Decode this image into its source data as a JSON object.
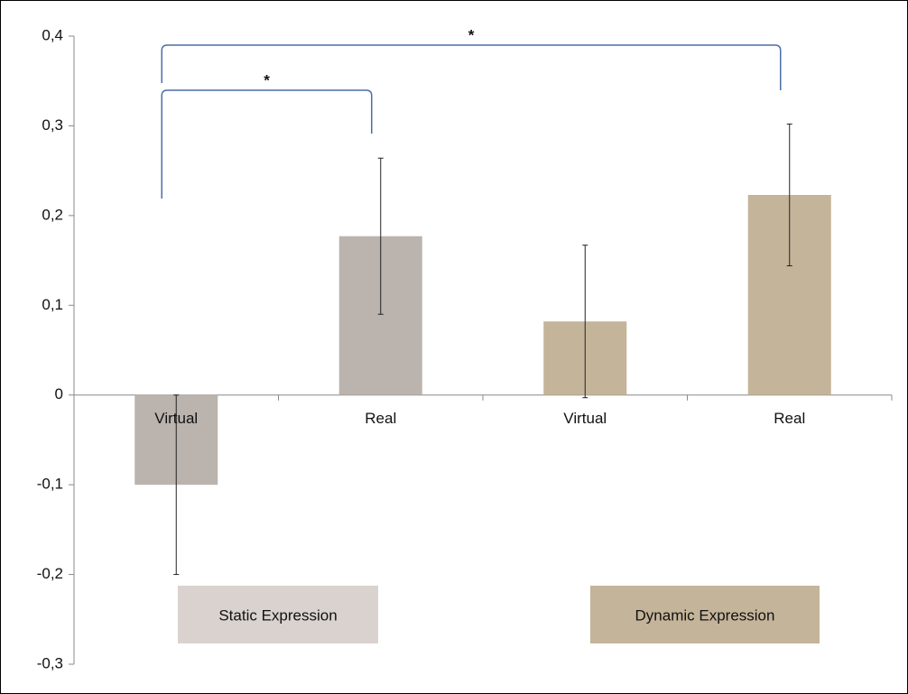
{
  "chart_data": {
    "type": "bar",
    "categories": [
      "Virtual",
      "Real",
      "Virtual",
      "Real"
    ],
    "values": [
      -0.1,
      0.177,
      0.082,
      0.223
    ],
    "errors": [
      0.1,
      0.087,
      0.085,
      0.079
    ],
    "colors": [
      "#bab3ae",
      "#bab3ae",
      "#c4b49a",
      "#c4b49a"
    ],
    "groups": [
      {
        "name": "Static Expression",
        "color": "#d9d2ce"
      },
      {
        "name": "Dynamic Expression",
        "color": "#c4b49a"
      }
    ],
    "annotations": [
      {
        "from": 0,
        "to": 1,
        "text": "*"
      },
      {
        "from": 0,
        "to": 3,
        "text": "*"
      }
    ],
    "ylim": [
      -0.3,
      0.4
    ],
    "yticks": [
      {
        "value": 0.4,
        "label": "0,4"
      },
      {
        "value": 0.3,
        "label": "0,3"
      },
      {
        "value": 0.2,
        "label": "0,2"
      },
      {
        "value": 0.1,
        "label": "0,1"
      },
      0,
      {
        "value": -0.1,
        "label": "-0,1"
      },
      {
        "value": -0.2,
        "label": "-0,2"
      },
      {
        "value": -0.3,
        "label": "-0,3"
      }
    ]
  }
}
